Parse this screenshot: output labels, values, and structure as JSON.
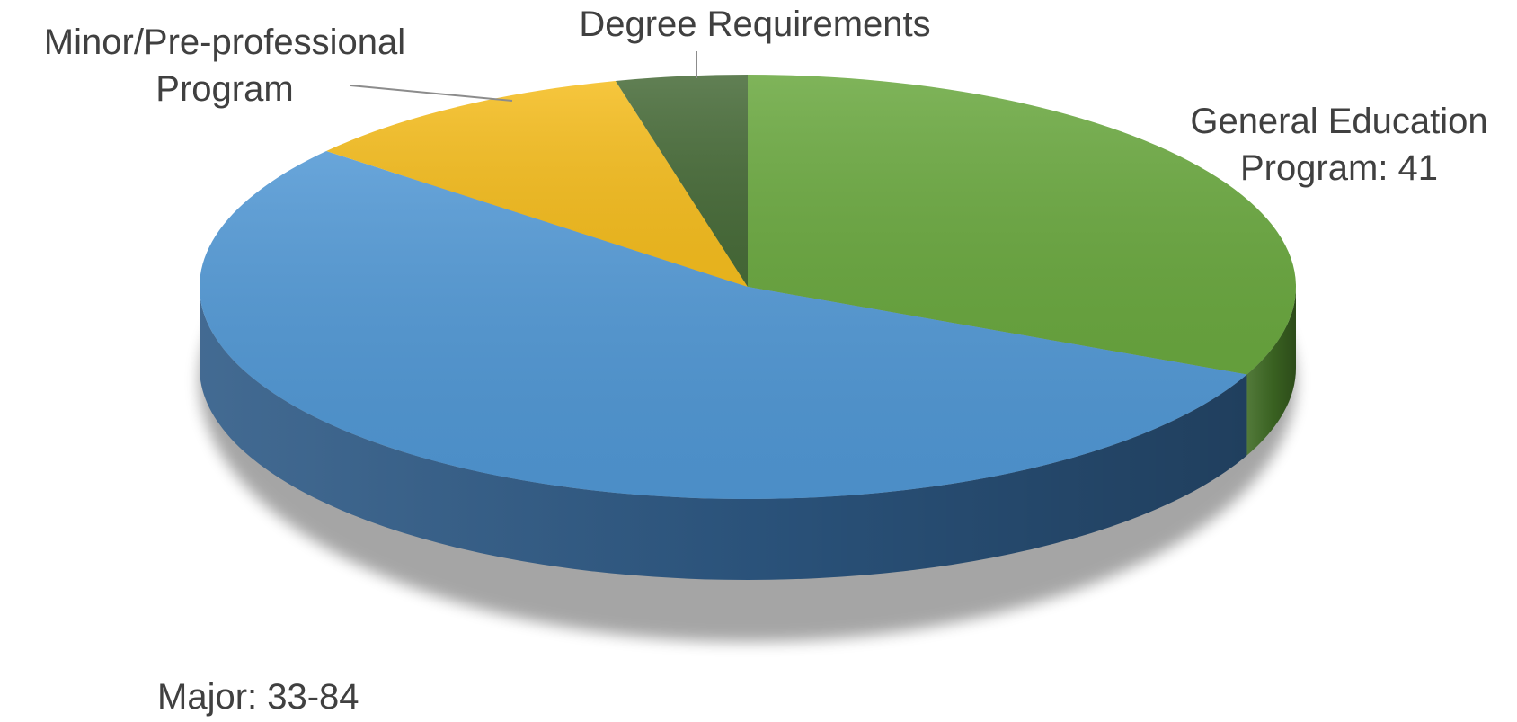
{
  "chart_data": {
    "type": "pie",
    "style": "3d",
    "title": "",
    "slices": [
      {
        "label": "General Education Program: 41",
        "label_lines": [
          "General Education",
          "Program: 41"
        ],
        "value": 41,
        "color": "#6aa83f",
        "side_color": "#3f6b24"
      },
      {
        "label": "Major: 33-84",
        "label_lines": [
          "Major: 33-84"
        ],
        "value": 70,
        "color": "#5097d4",
        "side_color": "#2e5a86"
      },
      {
        "label": "Minor/Pre-professional Program",
        "label_lines": [
          "Minor/Pre-professional",
          "Program"
        ],
        "value": 13,
        "color": "#f5bd1e",
        "side_color": "#b98a0b"
      },
      {
        "label": "Degree Requirements",
        "label_lines": [
          "Degree Requirements"
        ],
        "value": 5,
        "color": "#476b38",
        "side_color": "#2b4322"
      }
    ],
    "legend": "none"
  }
}
